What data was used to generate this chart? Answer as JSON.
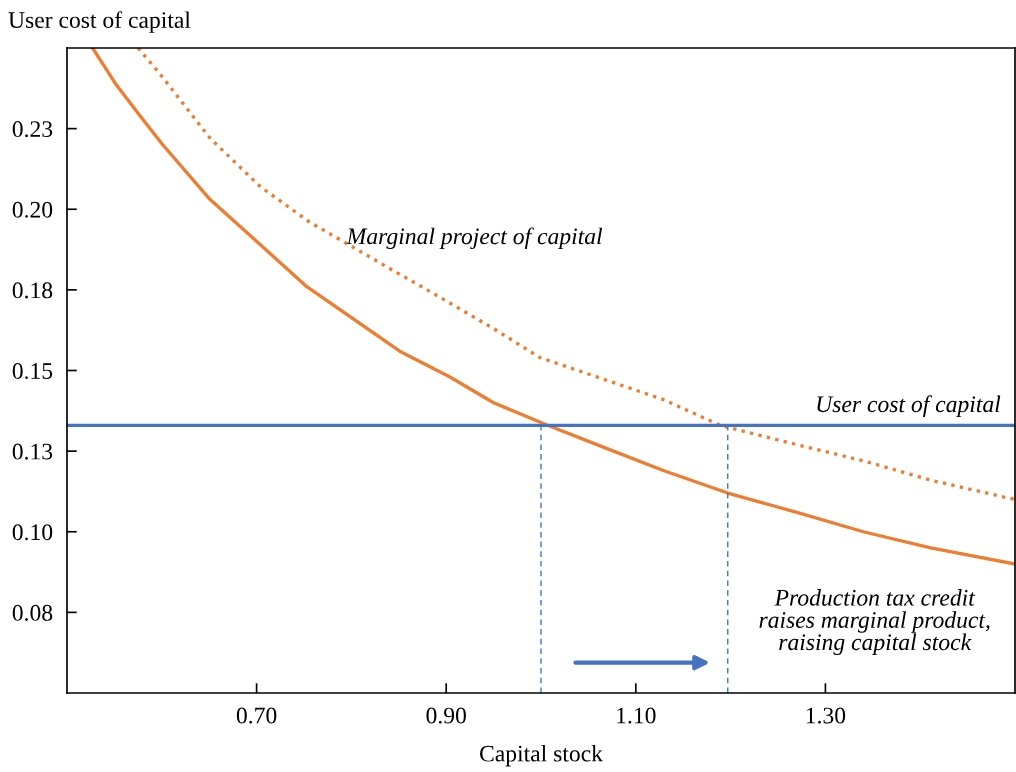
{
  "chart_data": {
    "type": "line",
    "xlabel": "Capital stock",
    "ylabel": "User cost of capital",
    "xlim": [
      0.5,
      1.5
    ],
    "xticks": [
      {
        "value": 0.7,
        "label": "0.70"
      },
      {
        "value": 0.9,
        "label": "0.90"
      },
      {
        "value": 1.1,
        "label": "1.10"
      },
      {
        "value": 1.3,
        "label": "1.30"
      }
    ],
    "ylim": [
      0.05,
      0.25
    ],
    "yticks": [
      {
        "value": 0.075,
        "label": "0.08"
      },
      {
        "value": 0.1,
        "label": "0.10"
      },
      {
        "value": 0.125,
        "label": "0.13"
      },
      {
        "value": 0.15,
        "label": "0.15"
      },
      {
        "value": 0.175,
        "label": "0.18"
      },
      {
        "value": 0.2,
        "label": "0.20"
      },
      {
        "value": 0.225,
        "label": "0.23"
      }
    ],
    "grid": false,
    "legend": false,
    "marker": "none",
    "series": [
      {
        "color": "#ed7d31",
        "line_style": "solid",
        "x": [
          0.527,
          0.551,
          0.577,
          0.601,
          0.651,
          0.704,
          0.753,
          0.802,
          0.851,
          0.904,
          0.95,
          1.007,
          1.059,
          1.129,
          1.197,
          1.27,
          1.34,
          1.411,
          1.5
        ],
        "values": [
          0.25,
          0.239,
          0.229,
          0.22,
          0.203,
          0.189,
          0.176,
          0.166,
          0.156,
          0.148,
          0.14,
          0.133,
          0.127,
          0.119,
          0.112,
          0.106,
          0.1,
          0.095,
          0.09
        ]
      },
      {
        "name": "Marginal project of capital",
        "color": "#ed7d31",
        "line_style": "dotted",
        "x": [
          0.575,
          0.598,
          0.651,
          0.704,
          0.756,
          0.809,
          0.844,
          0.88,
          0.915,
          0.95,
          0.999,
          1.059,
          1.129,
          1.189,
          1.27,
          1.34,
          1.411,
          1.5
        ],
        "values": [
          0.25,
          0.242,
          0.222,
          0.207,
          0.196,
          0.187,
          0.181,
          0.175,
          0.169,
          0.163,
          0.154,
          0.148,
          0.141,
          0.133,
          0.127,
          0.122,
          0.116,
          0.11
        ]
      },
      {
        "color": "#4472c4",
        "line_style": "dashed",
        "x": [
          1.0,
          1.0
        ],
        "values": [
          0.05,
          0.133
        ]
      },
      {
        "color": "#4472c4",
        "line_style": "dashed",
        "x": [
          1.197,
          1.197
        ],
        "values": [
          0.05,
          0.133
        ]
      }
    ],
    "ref_lines": [
      {
        "axis": "y",
        "value": 0.133,
        "label": "User cost of capital",
        "color": "#4472c4",
        "line_style": "solid"
      }
    ],
    "annotations": [
      "Production tax credit\nraises marginal product,\nraising capital stock"
    ]
  }
}
